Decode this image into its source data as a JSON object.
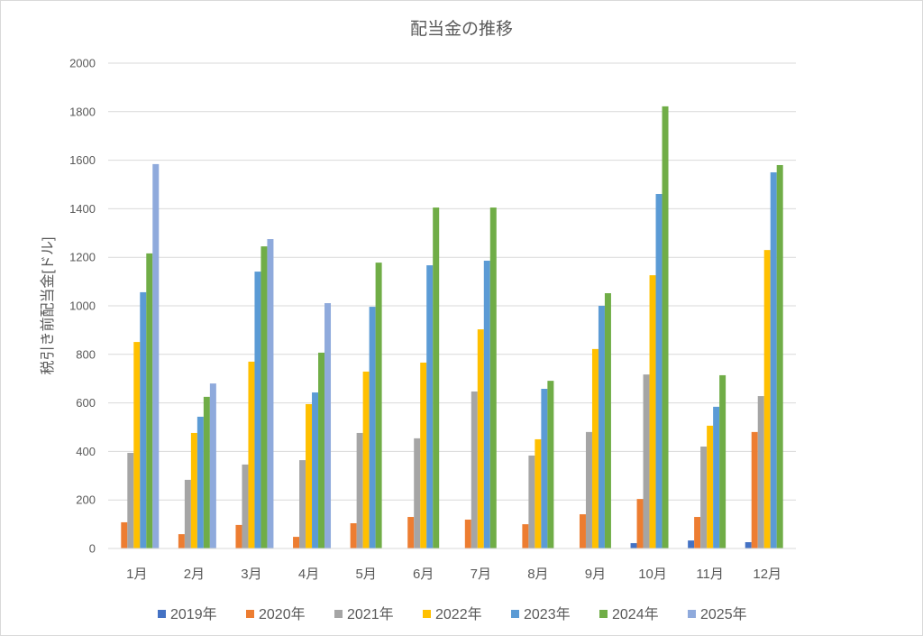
{
  "chart_data": {
    "type": "bar",
    "title": "配当金の推移",
    "xlabel": "",
    "ylabel": "税引き前配当金[ドル]",
    "ylim": [
      0,
      2000
    ],
    "yticks": [
      0,
      200,
      400,
      600,
      800,
      1000,
      1200,
      1400,
      1600,
      1800,
      2000
    ],
    "grid": true,
    "legend_position": "bottom",
    "categories": [
      "1月",
      "2月",
      "3月",
      "4月",
      "5月",
      "6月",
      "7月",
      "8月",
      "9月",
      "10月",
      "11月",
      "12月"
    ],
    "series": [
      {
        "name": "2019年",
        "color": "#4472C4",
        "values": [
          null,
          null,
          null,
          null,
          null,
          null,
          null,
          null,
          null,
          22,
          33,
          26
        ]
      },
      {
        "name": "2020年",
        "color": "#ED7D31",
        "values": [
          108,
          59,
          97,
          48,
          104,
          130,
          119,
          100,
          141,
          204,
          130,
          480
        ]
      },
      {
        "name": "2021年",
        "color": "#A5A5A5",
        "values": [
          394,
          283,
          346,
          364,
          476,
          454,
          647,
          383,
          480,
          717,
          420,
          628
        ]
      },
      {
        "name": "2022年",
        "color": "#FFC000",
        "values": [
          851,
          476,
          770,
          595,
          729,
          766,
          903,
          450,
          822,
          1126,
          506,
          1230
        ]
      },
      {
        "name": "2023年",
        "color": "#5B9BD5",
        "values": [
          1056,
          543,
          1141,
          643,
          996,
          1167,
          1186,
          658,
          1000,
          1461,
          584,
          1550
        ]
      },
      {
        "name": "2024年",
        "color": "#70AD47",
        "values": [
          1216,
          625,
          1245,
          807,
          1178,
          1405,
          1405,
          691,
          1052,
          1822,
          714,
          1580
        ]
      },
      {
        "name": "2025年",
        "color": "#8FAADC",
        "values": [
          1584,
          680,
          1275,
          1011,
          null,
          null,
          null,
          null,
          null,
          null,
          null,
          null
        ]
      }
    ]
  }
}
